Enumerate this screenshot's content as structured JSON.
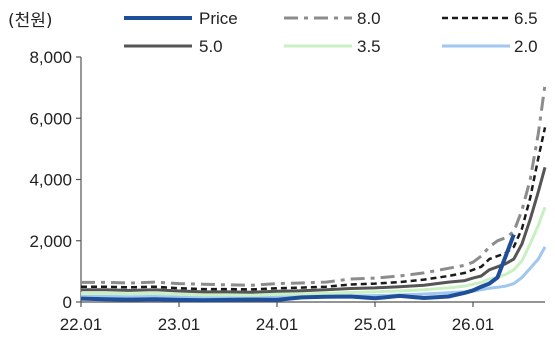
{
  "chart_data": {
    "type": "line",
    "unit_label": "(천원)",
    "x_ticks": [
      "22.01",
      "23.01",
      "24.01",
      "25.01",
      "26.01"
    ],
    "y_ticks": [
      "0",
      "2,000",
      "4,000",
      "6,000",
      "8,000"
    ],
    "ylim": [
      0,
      8000
    ],
    "xlim": [
      "2022-01",
      "2026-10"
    ],
    "legend_position": "top",
    "grid": false,
    "x": [
      "2022-01",
      "2022-04",
      "2022-07",
      "2022-10",
      "2023-01",
      "2023-04",
      "2023-07",
      "2023-10",
      "2024-01",
      "2024-04",
      "2024-07",
      "2024-10",
      "2025-01",
      "2025-04",
      "2025-07",
      "2025-10",
      "2025-12",
      "2026-01",
      "2026-02",
      "2026-03",
      "2026-04",
      "2026-05",
      "2026-06",
      "2026-07",
      "2026-08",
      "2026-09",
      "2026-10"
    ],
    "series": [
      {
        "name": "Price",
        "color": "#1f4e9a",
        "dash": "solid",
        "width": 4,
        "values": [
          110,
          90,
          80,
          90,
          70,
          60,
          70,
          80,
          70,
          150,
          170,
          180,
          120,
          200,
          130,
          180,
          300,
          380,
          500,
          600,
          800,
          1500,
          2200,
          null,
          null,
          null,
          null
        ]
      },
      {
        "name": "8.0",
        "color": "#8c8c8c",
        "dash": "dashdot",
        "width": 3,
        "values": [
          640,
          640,
          620,
          650,
          600,
          580,
          560,
          550,
          600,
          620,
          650,
          750,
          780,
          850,
          950,
          1100,
          1200,
          1300,
          1500,
          1800,
          2000,
          2100,
          2300,
          3000,
          4000,
          5500,
          7100
        ]
      },
      {
        "name": "6.5",
        "color": "#1a1a1a",
        "dash": "dashed",
        "width": 2.5,
        "values": [
          500,
          500,
          480,
          500,
          450,
          420,
          420,
          410,
          450,
          470,
          500,
          570,
          600,
          650,
          730,
          850,
          950,
          1050,
          1150,
          1400,
          1500,
          1600,
          1800,
          2400,
          3400,
          4700,
          5700
        ]
      },
      {
        "name": "5.0",
        "color": "#555555",
        "dash": "solid",
        "width": 3,
        "values": [
          400,
          400,
          380,
          400,
          360,
          330,
          330,
          320,
          350,
          370,
          400,
          440,
          460,
          500,
          550,
          650,
          700,
          780,
          850,
          1050,
          1150,
          1250,
          1400,
          1900,
          2700,
          3600,
          4400
        ]
      },
      {
        "name": "3.5",
        "color": "#c9f0c3",
        "dash": "solid",
        "width": 3,
        "values": [
          280,
          280,
          270,
          280,
          250,
          230,
          230,
          220,
          250,
          260,
          280,
          310,
          330,
          360,
          400,
          460,
          520,
          580,
          640,
          750,
          800,
          900,
          1050,
          1350,
          1900,
          2500,
          3100
        ]
      },
      {
        "name": "2.0",
        "color": "#9fc7f0",
        "dash": "solid",
        "width": 3,
        "values": [
          180,
          180,
          170,
          180,
          160,
          150,
          150,
          140,
          160,
          170,
          180,
          200,
          210,
          230,
          260,
          300,
          330,
          360,
          400,
          450,
          480,
          520,
          600,
          800,
          1100,
          1400,
          1800
        ]
      }
    ]
  }
}
